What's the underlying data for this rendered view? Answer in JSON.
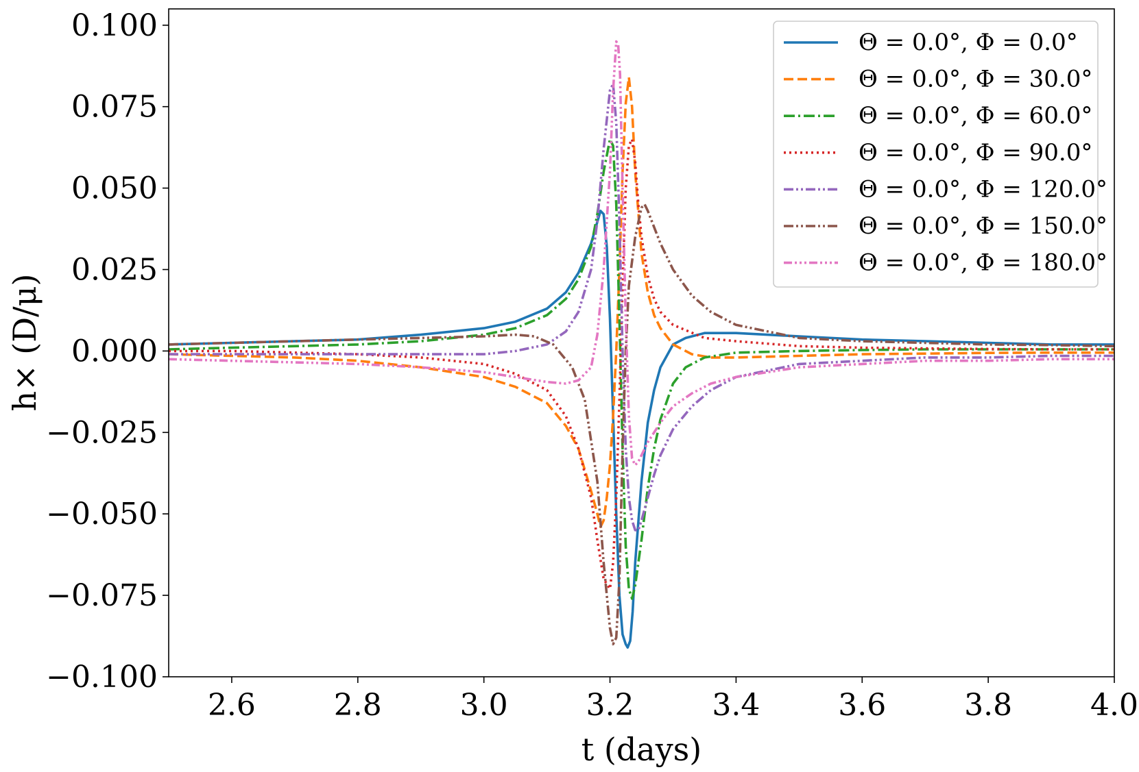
{
  "chart_data": {
    "type": "line",
    "title": "",
    "xlabel": "t (days)",
    "ylabel": "h× (D/μ)",
    "xlim": [
      2.5,
      4.0
    ],
    "ylim": [
      -0.1,
      0.105
    ],
    "xticks": [
      2.6,
      2.8,
      3.0,
      3.2,
      3.4,
      3.6,
      3.8,
      4.0
    ],
    "xtick_labels": [
      "2.6",
      "2.8",
      "3.0",
      "3.2",
      "3.4",
      "3.6",
      "3.8",
      "4.0"
    ],
    "yticks": [
      -0.1,
      -0.075,
      -0.05,
      -0.025,
      0.0,
      0.025,
      0.05,
      0.075,
      0.1
    ],
    "ytick_labels": [
      "−0.100",
      "−0.075",
      "−0.050",
      "−0.025",
      "0.000",
      "0.025",
      "0.050",
      "0.075",
      "0.100"
    ],
    "grid": false,
    "legend_position": "top-right",
    "series": [
      {
        "name": "Θ = 0.0°,  Φ = 0.0°",
        "color": "#1f77b4",
        "style": "solid",
        "x": [
          2.5,
          2.6,
          2.7,
          2.8,
          2.9,
          3.0,
          3.05,
          3.1,
          3.13,
          3.15,
          3.17,
          3.185,
          3.19,
          3.195,
          3.2,
          3.205,
          3.21,
          3.215,
          3.22,
          3.225,
          3.228,
          3.232,
          3.236,
          3.24,
          3.25,
          3.26,
          3.27,
          3.28,
          3.3,
          3.32,
          3.35,
          3.4,
          3.5,
          3.6,
          3.7,
          3.8,
          3.9,
          4.0
        ],
        "y": [
          0.002,
          0.0025,
          0.003,
          0.0035,
          0.005,
          0.007,
          0.009,
          0.013,
          0.018,
          0.024,
          0.033,
          0.043,
          0.042,
          0.032,
          0.01,
          -0.02,
          -0.05,
          -0.075,
          -0.087,
          -0.09,
          -0.091,
          -0.089,
          -0.08,
          -0.065,
          -0.04,
          -0.022,
          -0.012,
          -0.005,
          0.002,
          0.004,
          0.0055,
          0.0055,
          0.0045,
          0.0035,
          0.003,
          0.0025,
          0.002,
          0.002
        ]
      },
      {
        "name": "Θ = 0.0°,  Φ = 30.0°",
        "color": "#ff7f0e",
        "style": "dashed",
        "x": [
          2.5,
          2.6,
          2.7,
          2.8,
          2.9,
          3.0,
          3.05,
          3.1,
          3.13,
          3.15,
          3.17,
          3.18,
          3.185,
          3.19,
          3.195,
          3.2,
          3.205,
          3.21,
          3.215,
          3.22,
          3.225,
          3.23,
          3.235,
          3.24,
          3.25,
          3.26,
          3.27,
          3.28,
          3.3,
          3.33,
          3.36,
          3.4,
          3.5,
          3.6,
          3.7,
          3.8,
          3.9,
          4.0
        ],
        "y": [
          -0.001,
          -0.0015,
          -0.002,
          -0.003,
          -0.005,
          -0.008,
          -0.011,
          -0.016,
          -0.023,
          -0.03,
          -0.043,
          -0.05,
          -0.054,
          -0.052,
          -0.045,
          -0.035,
          -0.02,
          0.0,
          0.025,
          0.055,
          0.076,
          0.084,
          0.075,
          0.055,
          0.03,
          0.018,
          0.011,
          0.007,
          0.002,
          -0.001,
          -0.002,
          -0.002,
          -0.0015,
          -0.001,
          -0.0008,
          -0.0006,
          -0.0005,
          -0.0005
        ]
      },
      {
        "name": "Θ = 0.0°,  Φ = 60.0°",
        "color": "#2ca02c",
        "style": "dashdot",
        "x": [
          2.5,
          2.6,
          2.7,
          2.8,
          2.9,
          3.0,
          3.05,
          3.1,
          3.13,
          3.15,
          3.17,
          3.18,
          3.19,
          3.2,
          3.205,
          3.21,
          3.215,
          3.22,
          3.225,
          3.23,
          3.235,
          3.24,
          3.25,
          3.26,
          3.27,
          3.28,
          3.3,
          3.32,
          3.35,
          3.4,
          3.5,
          3.6,
          3.7,
          3.8,
          3.9,
          4.0
        ],
        "y": [
          0.0005,
          0.001,
          0.0015,
          0.002,
          0.003,
          0.005,
          0.007,
          0.011,
          0.016,
          0.022,
          0.032,
          0.042,
          0.055,
          0.065,
          0.063,
          0.045,
          0.01,
          -0.03,
          -0.06,
          -0.073,
          -0.076,
          -0.072,
          -0.058,
          -0.042,
          -0.03,
          -0.021,
          -0.01,
          -0.005,
          -0.002,
          -0.0005,
          0.0,
          0.0003,
          0.0005,
          0.0005,
          0.0005,
          0.0005
        ]
      },
      {
        "name": "Θ = 0.0°,  Φ = 90.0°",
        "color": "#d62728",
        "style": "dotted",
        "x": [
          2.5,
          2.6,
          2.7,
          2.8,
          2.9,
          3.0,
          3.05,
          3.1,
          3.13,
          3.15,
          3.17,
          3.18,
          3.19,
          3.2,
          3.205,
          3.21,
          3.215,
          3.22,
          3.225,
          3.23,
          3.235,
          3.24,
          3.245,
          3.25,
          3.26,
          3.27,
          3.28,
          3.3,
          3.35,
          3.4,
          3.5,
          3.6,
          3.7,
          3.8,
          3.9,
          4.0
        ],
        "y": [
          0.0,
          0.0,
          -0.0005,
          -0.001,
          -0.002,
          -0.004,
          -0.007,
          -0.012,
          -0.02,
          -0.03,
          -0.045,
          -0.058,
          -0.07,
          -0.073,
          -0.065,
          -0.045,
          -0.015,
          0.02,
          0.05,
          0.063,
          0.065,
          0.058,
          0.045,
          0.035,
          0.023,
          0.016,
          0.012,
          0.008,
          0.004,
          0.003,
          0.0015,
          0.001,
          0.0008,
          0.0006,
          0.0005,
          0.0005
        ]
      },
      {
        "name": "Θ = 0.0°,  Φ = 120.0°",
        "color": "#9467bd",
        "style": "dashdotdot",
        "x": [
          2.5,
          2.6,
          2.7,
          2.8,
          2.9,
          3.0,
          3.05,
          3.1,
          3.13,
          3.15,
          3.17,
          3.18,
          3.19,
          3.2,
          3.205,
          3.21,
          3.215,
          3.22,
          3.225,
          3.23,
          3.235,
          3.24,
          3.245,
          3.25,
          3.26,
          3.27,
          3.28,
          3.3,
          3.33,
          3.36,
          3.4,
          3.5,
          3.6,
          3.7,
          3.8,
          3.9,
          4.0
        ],
        "y": [
          -0.001,
          -0.001,
          -0.001,
          -0.001,
          -0.001,
          -0.001,
          0.0,
          0.002,
          0.006,
          0.012,
          0.025,
          0.04,
          0.062,
          0.08,
          0.082,
          0.07,
          0.04,
          0.0,
          -0.03,
          -0.045,
          -0.052,
          -0.055,
          -0.055,
          -0.052,
          -0.045,
          -0.038,
          -0.032,
          -0.024,
          -0.017,
          -0.012,
          -0.008,
          -0.004,
          -0.003,
          -0.002,
          -0.002,
          -0.0015,
          -0.0015
        ]
      },
      {
        "name": "Θ = 0.0°,  Φ = 150.0°",
        "color": "#8c564b",
        "style": "dashdotdot",
        "x": [
          2.5,
          2.6,
          2.7,
          2.8,
          2.9,
          3.0,
          3.05,
          3.08,
          3.11,
          3.14,
          3.16,
          3.18,
          3.19,
          3.2,
          3.205,
          3.21,
          3.215,
          3.22,
          3.225,
          3.23,
          3.24,
          3.25,
          3.255,
          3.26,
          3.28,
          3.3,
          3.33,
          3.36,
          3.4,
          3.5,
          3.6,
          3.7,
          3.8,
          3.9,
          4.0
        ],
        "y": [
          0.002,
          0.0025,
          0.003,
          0.0035,
          0.004,
          0.0045,
          0.005,
          0.0045,
          0.002,
          -0.005,
          -0.015,
          -0.04,
          -0.065,
          -0.085,
          -0.09,
          -0.088,
          -0.07,
          -0.03,
          0.0,
          0.02,
          0.035,
          0.044,
          0.045,
          0.043,
          0.033,
          0.025,
          0.017,
          0.012,
          0.008,
          0.004,
          0.003,
          0.0025,
          0.002,
          0.0018,
          0.0015
        ]
      },
      {
        "name": "Θ = 0.0°,  Φ = 180.0°",
        "color": "#e377c2",
        "style": "dashdotdotdot",
        "x": [
          2.5,
          2.6,
          2.7,
          2.8,
          2.9,
          3.0,
          3.05,
          3.1,
          3.13,
          3.15,
          3.17,
          3.18,
          3.19,
          3.2,
          3.205,
          3.21,
          3.213,
          3.216,
          3.22,
          3.225,
          3.23,
          3.235,
          3.24,
          3.245,
          3.25,
          3.26,
          3.28,
          3.3,
          3.33,
          3.36,
          3.4,
          3.5,
          3.6,
          3.7,
          3.8,
          3.9,
          4.0
        ],
        "y": [
          -0.0025,
          -0.003,
          -0.0035,
          -0.004,
          -0.005,
          -0.0065,
          -0.008,
          -0.0095,
          -0.01,
          -0.009,
          -0.005,
          0.005,
          0.025,
          0.055,
          0.08,
          0.095,
          0.094,
          0.085,
          0.05,
          0.01,
          -0.02,
          -0.033,
          -0.035,
          -0.034,
          -0.032,
          -0.028,
          -0.022,
          -0.017,
          -0.013,
          -0.01,
          -0.008,
          -0.005,
          -0.004,
          -0.003,
          -0.003,
          -0.0025,
          -0.0025
        ]
      }
    ]
  }
}
